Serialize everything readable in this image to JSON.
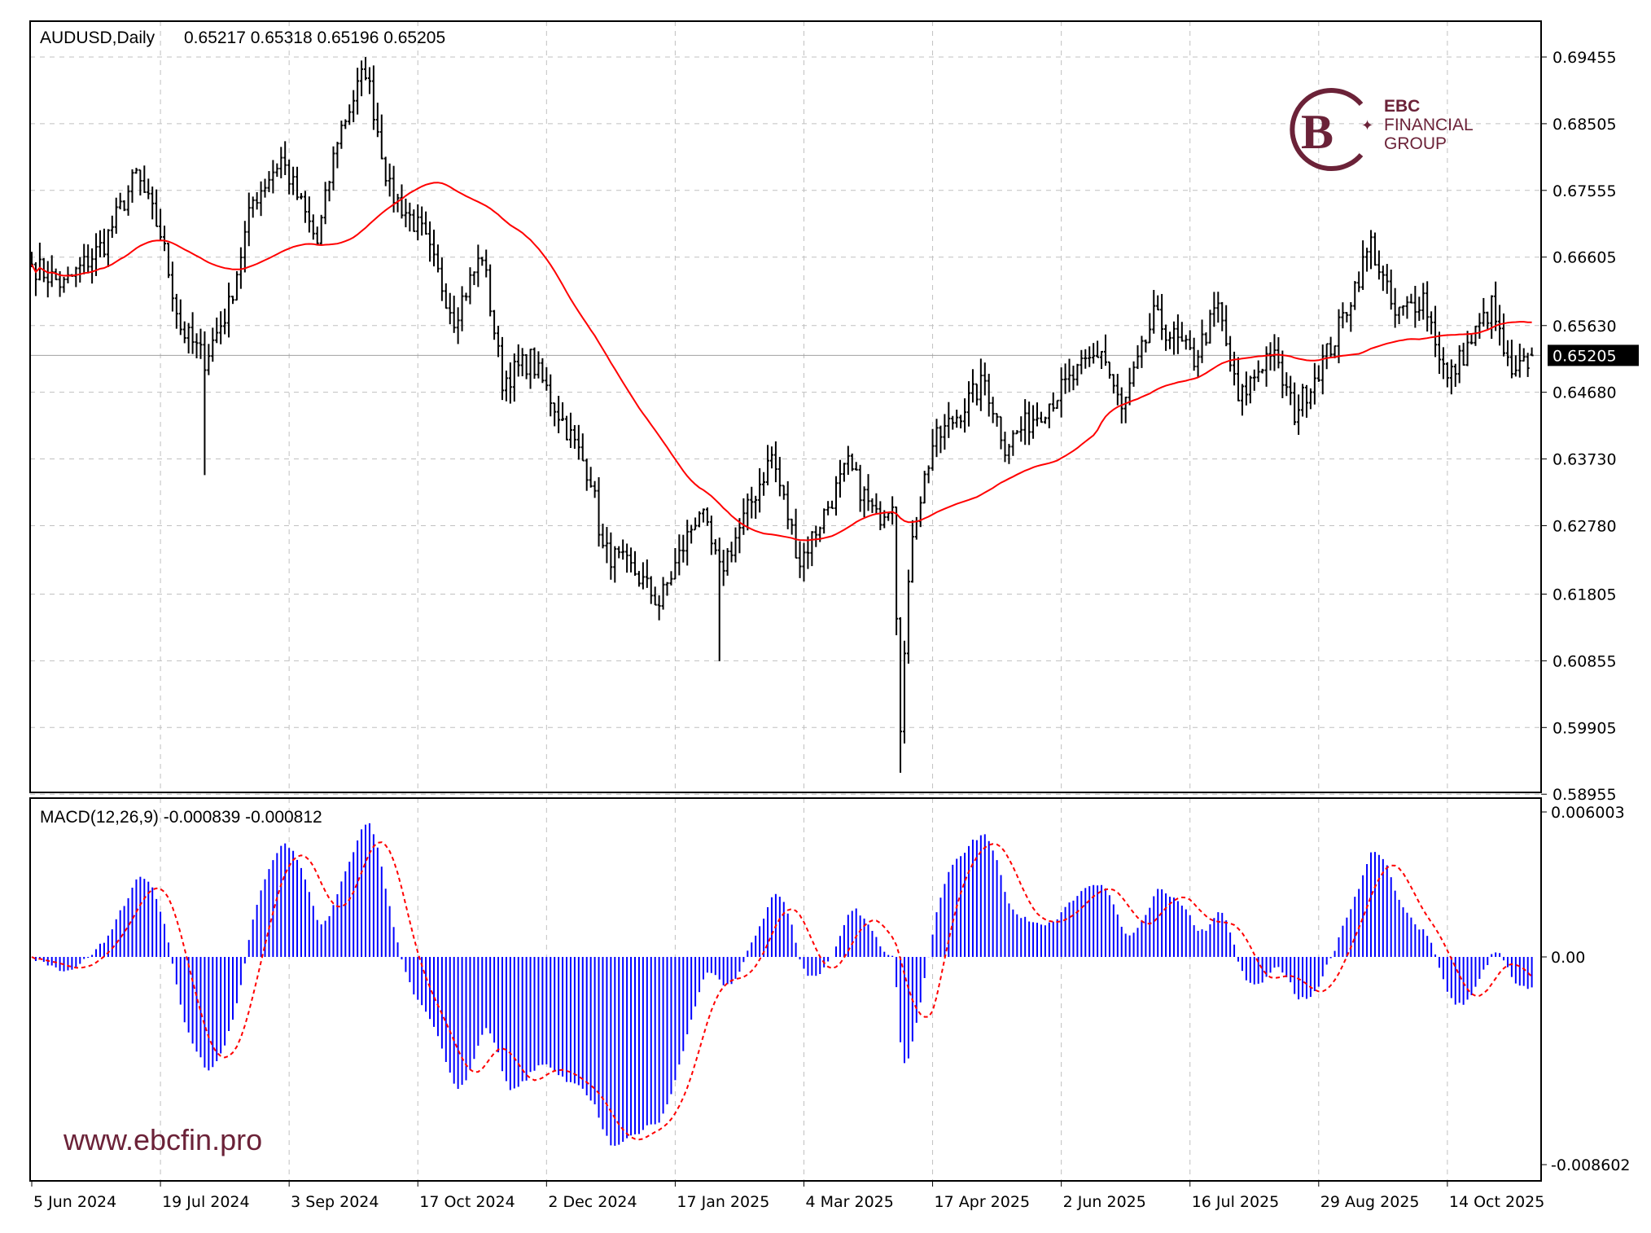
{
  "chart_data": [
    {
      "type": "bar",
      "style": "ohlc",
      "title": "AUDUSD,Daily",
      "last_ohlc": {
        "open": "0.65217",
        "high": "0.65318",
        "low": "0.65196",
        "close": "0.65205"
      },
      "current_price_label": "0.65205",
      "y_ticks": [
        "0.69455",
        "0.68505",
        "0.67555",
        "0.66605",
        "0.65630",
        "0.64680",
        "0.63730",
        "0.62780",
        "0.61805",
        "0.60855",
        "0.59905",
        "0.58955"
      ],
      "ylim": [
        0.58955,
        0.69455
      ],
      "x_ticks": [
        "5 Jun 2024",
        "19 Jul 2024",
        "3 Sep 2024",
        "17 Oct 2024",
        "2 Dec 2024",
        "17 Jan 2025",
        "4 Mar 2025",
        "17 Apr 2025",
        "2 Jun 2025",
        "16 Jul 2025",
        "29 Aug 2025",
        "14 Oct 2025"
      ],
      "grid": true,
      "close_path_by_bar": [
        [
          0,
          0.665
        ],
        [
          8,
          0.662
        ],
        [
          18,
          0.668
        ],
        [
          26,
          0.6778
        ],
        [
          32,
          0.6695
        ],
        [
          37,
          0.656
        ],
        [
          43,
          0.6515
        ],
        [
          49,
          0.659
        ],
        [
          55,
          0.6741
        ],
        [
          62,
          0.6801
        ],
        [
          71,
          0.668
        ],
        [
          76,
          0.6831
        ],
        [
          83,
          0.6929
        ],
        [
          89,
          0.6755
        ],
        [
          97,
          0.6695
        ],
        [
          105,
          0.6575
        ],
        [
          112,
          0.6665
        ],
        [
          117,
          0.6484
        ],
        [
          124,
          0.6515
        ],
        [
          131,
          0.6439
        ],
        [
          139,
          0.6348
        ],
        [
          142,
          0.6243
        ],
        [
          150,
          0.6212
        ],
        [
          156,
          0.6167
        ],
        [
          166,
          0.6302
        ],
        [
          171,
          0.6212
        ],
        [
          176,
          0.6273
        ],
        [
          184,
          0.6378
        ],
        [
          191,
          0.6227
        ],
        [
          203,
          0.6363
        ],
        [
          210,
          0.6288
        ],
        [
          214,
          0.6318
        ],
        [
          216,
          0.6002
        ],
        [
          219,
          0.6273
        ],
        [
          224,
          0.6393
        ],
        [
          237,
          0.6484
        ],
        [
          242,
          0.6393
        ],
        [
          253,
          0.6454
        ],
        [
          266,
          0.6529
        ],
        [
          271,
          0.6439
        ],
        [
          279,
          0.6575
        ],
        [
          289,
          0.6515
        ],
        [
          295,
          0.659
        ],
        [
          300,
          0.6454
        ],
        [
          308,
          0.6529
        ],
        [
          314,
          0.6439
        ],
        [
          324,
          0.6544
        ],
        [
          333,
          0.668
        ],
        [
          339,
          0.6575
        ],
        [
          346,
          0.6605
        ],
        [
          352,
          0.6484
        ],
        [
          363,
          0.659
        ],
        [
          368,
          0.6484
        ],
        [
          373,
          0.65205
        ]
      ],
      "extreme_lows": [
        [
          43,
          0.635
        ],
        [
          216,
          0.5926
        ],
        [
          171,
          0.6085
        ]
      ],
      "overlay": {
        "type": "moving-average",
        "color": "#ff0000"
      },
      "colors": {
        "bars": "#000000",
        "grid": "#c0c0c0"
      }
    },
    {
      "type": "bar",
      "title": "MACD(12,26,9)",
      "macd_value": "-0.000839",
      "signal_value": "-0.000812",
      "y_ticks": [
        "0.006003",
        "0.00",
        "-0.008602"
      ],
      "ylim": [
        -0.008602,
        0.006003
      ],
      "colors": {
        "histogram": "#0000ff",
        "signal": "#ff0000"
      }
    }
  ],
  "header": {
    "symbol": "AUDUSD,Daily",
    "ohlc": "0.65217 0.65318 0.65196 0.65205",
    "macd": "MACD(12,26,9) -0.000839 -0.000812"
  },
  "brand": {
    "name": "EBC",
    "line1": "FINANCIAL",
    "line2": "GROUP",
    "website": "www.ebcfin.pro",
    "color": "#6b2238"
  }
}
